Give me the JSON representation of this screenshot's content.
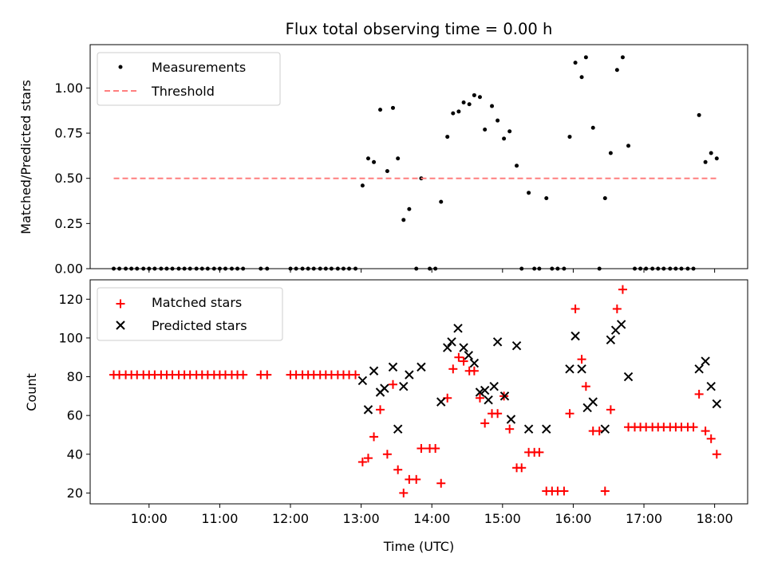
{
  "chart_data": {
    "title": "Flux total observing time = 0.00 h",
    "xlabel": "Time (UTC)",
    "xlim": [
      9.167,
      18.467
    ],
    "x_ticks": [
      "10:00",
      "11:00",
      "12:00",
      "13:00",
      "14:00",
      "15:00",
      "16:00",
      "17:00",
      "18:00"
    ],
    "x_tick_hours": [
      10,
      11,
      12,
      13,
      14,
      15,
      16,
      17,
      18
    ],
    "colors": {
      "measurements": "#000000",
      "threshold": "#ff7f7f",
      "matched": "#ff0000",
      "predicted": "#000000"
    },
    "charts": [
      {
        "type": "scatter",
        "ylabel": "Matched/Predicted stars",
        "ylim": [
          0,
          1.24
        ],
        "y_ticks": [
          "0.00",
          "0.25",
          "0.50",
          "0.75",
          "1.00"
        ],
        "y_tick_values": [
          0,
          0.25,
          0.5,
          0.75,
          1.0
        ],
        "legend_position": "top-left",
        "series": [
          {
            "name": "Measurements",
            "kind": "points",
            "x": [
              9.5,
              9.58,
              9.67,
              9.75,
              9.83,
              9.92,
              10.0,
              10.08,
              10.17,
              10.25,
              10.33,
              10.42,
              10.5,
              10.58,
              10.67,
              10.75,
              10.83,
              10.92,
              11.0,
              11.08,
              11.17,
              11.25,
              11.33,
              11.58,
              11.67,
              12.0,
              12.08,
              12.17,
              12.25,
              12.33,
              12.42,
              12.5,
              12.58,
              12.67,
              12.75,
              12.83,
              12.92,
              13.02,
              13.1,
              13.18,
              13.27,
              13.37,
              13.45,
              13.52,
              13.6,
              13.68,
              13.78,
              13.85,
              13.97,
              14.05,
              14.13,
              14.22,
              14.3,
              14.38,
              14.45,
              14.53,
              14.6,
              14.68,
              14.75,
              14.85,
              14.93,
              15.02,
              15.1,
              15.2,
              15.27,
              15.37,
              15.45,
              15.52,
              15.62,
              15.7,
              15.78,
              15.87,
              15.95,
              16.03,
              16.12,
              16.18,
              16.28,
              16.37,
              16.45,
              16.53,
              16.62,
              16.7,
              16.78,
              16.87,
              16.95,
              17.03,
              17.12,
              17.2,
              17.28,
              17.37,
              17.45,
              17.53,
              17.62,
              17.7,
              17.78,
              17.87,
              17.95,
              18.03
            ],
            "y": [
              0,
              0,
              0,
              0,
              0,
              0,
              0,
              0,
              0,
              0,
              0,
              0,
              0,
              0,
              0,
              0,
              0,
              0,
              0,
              0,
              0,
              0,
              0,
              0,
              0,
              0,
              0,
              0,
              0,
              0,
              0,
              0,
              0,
              0,
              0,
              0,
              0,
              0.46,
              0.61,
              0.59,
              0.88,
              0.54,
              0.89,
              0.61,
              0.27,
              0.33,
              0,
              0.5,
              0,
              0,
              0.37,
              0.73,
              0.86,
              0.87,
              0.92,
              0.91,
              0.96,
              0.95,
              0.77,
              0.9,
              0.82,
              0.72,
              0.76,
              0.57,
              0,
              0.42,
              0,
              0,
              0.39,
              0,
              0,
              0,
              0.73,
              1.14,
              1.06,
              1.17,
              0.78,
              0,
              0.39,
              0.64,
              1.1,
              1.17,
              0.68,
              0,
              0,
              0,
              0,
              0,
              0,
              0,
              0,
              0,
              0,
              0,
              0.85,
              0.59,
              0.64,
              0.61
            ]
          },
          {
            "name": "Threshold",
            "kind": "dashed-line",
            "x": [
              9.5,
              18.03
            ],
            "y": [
              0.5,
              0.5
            ]
          }
        ]
      },
      {
        "type": "scatter",
        "ylabel": "Count",
        "ylim": [
          14.4,
          130
        ],
        "y_ticks": [
          "20",
          "40",
          "60",
          "80",
          "100",
          "120"
        ],
        "y_tick_values": [
          20,
          40,
          60,
          80,
          100,
          120
        ],
        "legend_position": "top-left",
        "series": [
          {
            "name": "Matched stars",
            "kind": "plus",
            "x": [
              9.5,
              9.58,
              9.67,
              9.75,
              9.83,
              9.92,
              10.0,
              10.08,
              10.17,
              10.25,
              10.33,
              10.42,
              10.5,
              10.58,
              10.67,
              10.75,
              10.83,
              10.92,
              11.0,
              11.08,
              11.17,
              11.25,
              11.33,
              11.58,
              11.67,
              12.0,
              12.08,
              12.17,
              12.25,
              12.33,
              12.42,
              12.5,
              12.58,
              12.67,
              12.75,
              12.83,
              12.92,
              13.02,
              13.1,
              13.18,
              13.27,
              13.37,
              13.45,
              13.52,
              13.6,
              13.68,
              13.78,
              13.85,
              13.97,
              14.05,
              14.13,
              14.22,
              14.3,
              14.38,
              14.45,
              14.53,
              14.6,
              14.68,
              14.75,
              14.85,
              14.93,
              15.02,
              15.1,
              15.2,
              15.27,
              15.37,
              15.45,
              15.52,
              15.62,
              15.7,
              15.78,
              15.87,
              15.95,
              16.03,
              16.12,
              16.18,
              16.28,
              16.37,
              16.45,
              16.53,
              16.62,
              16.7,
              16.78,
              16.87,
              16.95,
              17.03,
              17.12,
              17.2,
              17.28,
              17.37,
              17.45,
              17.53,
              17.62,
              17.7,
              17.78,
              17.87,
              17.95,
              18.03
            ],
            "y": [
              81,
              81,
              81,
              81,
              81,
              81,
              81,
              81,
              81,
              81,
              81,
              81,
              81,
              81,
              81,
              81,
              81,
              81,
              81,
              81,
              81,
              81,
              81,
              81,
              81,
              81,
              81,
              81,
              81,
              81,
              81,
              81,
              81,
              81,
              81,
              81,
              81,
              36,
              38,
              49,
              63,
              40,
              76,
              32,
              20,
              27,
              27,
              43,
              43,
              43,
              25,
              69,
              84,
              90,
              88,
              83,
              83,
              69,
              56,
              61,
              61,
              70,
              53,
              33,
              33,
              41,
              41,
              41,
              21,
              21,
              21,
              21,
              61,
              115,
              89,
              75,
              52,
              52,
              21,
              63,
              115,
              125,
              54,
              54,
              54,
              54,
              54,
              54,
              54,
              54,
              54,
              54,
              54,
              54,
              71,
              52,
              48,
              40
            ]
          },
          {
            "name": "Predicted stars",
            "kind": "x",
            "x": [
              13.02,
              13.1,
              13.18,
              13.27,
              13.33,
              13.45,
              13.52,
              13.6,
              13.68,
              13.85,
              14.13,
              14.22,
              14.28,
              14.37,
              14.45,
              14.52,
              14.6,
              14.68,
              14.75,
              14.8,
              14.88,
              14.93,
              15.03,
              15.12,
              15.2,
              15.37,
              15.62,
              15.95,
              16.03,
              16.12,
              16.2,
              16.28,
              16.45,
              16.53,
              16.6,
              16.68,
              16.78,
              17.78,
              17.87,
              17.95,
              18.03
            ],
            "y": [
              78,
              63,
              83,
              72,
              74,
              85,
              53,
              75,
              81,
              85,
              67,
              95,
              98,
              105,
              95,
              91,
              87,
              72,
              73,
              68,
              75,
              98,
              70,
              58,
              96,
              53,
              53,
              84,
              101,
              84,
              64,
              67,
              53,
              99,
              104,
              107,
              80,
              84,
              88,
              75,
              66
            ]
          }
        ]
      }
    ]
  }
}
